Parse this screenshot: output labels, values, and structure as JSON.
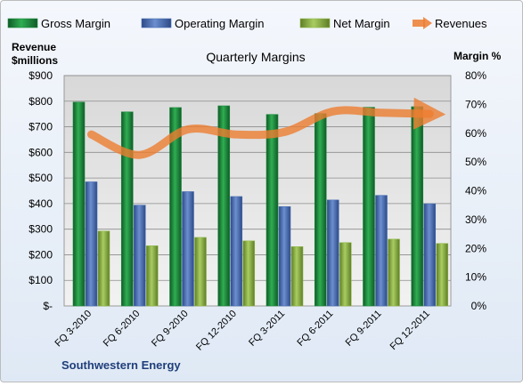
{
  "chart_data": {
    "type": "bar",
    "title": "Quarterly Margins",
    "footer": "Southwestern Energy",
    "left_axis_title": [
      "Revenue",
      "$millions"
    ],
    "right_axis_title": "Margin %",
    "categories": [
      "FQ 3-2010",
      "FQ 6-2010",
      "FQ 9-2010",
      "FQ 12-2010",
      "FQ 3-2011",
      "FQ 6-2011",
      "FQ 9-2011",
      "FQ 12-2011"
    ],
    "left_ticks": [
      "$-",
      "$100",
      "$200",
      "$300",
      "$400",
      "$500",
      "$600",
      "$700",
      "$800",
      "$900"
    ],
    "right_ticks": [
      "0%",
      "10%",
      "20%",
      "30%",
      "40%",
      "50%",
      "60%",
      "70%",
      "80%"
    ],
    "ylim_left": [
      0,
      900
    ],
    "ylim_right": [
      0,
      80
    ],
    "grid": true,
    "legend_position": "top",
    "series": [
      {
        "name": "Gross Margin",
        "axis": "right",
        "kind": "bar",
        "color": "#1e8a3e",
        "values": [
          70.8,
          67.4,
          68.9,
          69.5,
          66.5,
          66.8,
          69.0,
          69.2
        ]
      },
      {
        "name": "Operating Margin",
        "axis": "right",
        "kind": "bar",
        "color": "#4a6fb5",
        "values": [
          43.1,
          35.0,
          39.7,
          38.0,
          34.5,
          36.8,
          38.4,
          35.5
        ]
      },
      {
        "name": "Net Margin",
        "axis": "right",
        "kind": "bar",
        "color": "#8fb84a",
        "values": [
          26.0,
          20.9,
          23.8,
          22.6,
          20.6,
          22.0,
          23.2,
          21.7
        ]
      },
      {
        "name": "Revenues",
        "axis": "left",
        "kind": "line",
        "color": "#ec7d31",
        "values": [
          670,
          590,
          690,
          670,
          680,
          760,
          755,
          750
        ]
      }
    ]
  }
}
